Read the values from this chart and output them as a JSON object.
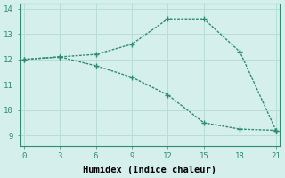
{
  "line1_x": [
    0,
    3,
    6,
    9,
    12,
    15,
    18,
    21
  ],
  "line1_y": [
    12.0,
    12.1,
    12.2,
    12.6,
    13.6,
    13.6,
    12.3,
    9.2
  ],
  "line2_x": [
    0,
    3,
    6,
    9,
    12,
    15,
    18,
    21
  ],
  "line2_y": [
    12.0,
    12.1,
    11.75,
    11.3,
    10.6,
    9.5,
    9.25,
    9.2
  ],
  "line_color": "#2e8b74",
  "bg_color": "#d5f0ec",
  "grid_color": "#b8ddd8",
  "xlabel": "Humidex (Indice chaleur)",
  "xticks": [
    0,
    3,
    6,
    9,
    12,
    15,
    18,
    21
  ],
  "yticks": [
    9,
    10,
    11,
    12,
    13,
    14
  ],
  "xlim": [
    -0.3,
    21.3
  ],
  "ylim": [
    8.6,
    14.2
  ],
  "marker": "+",
  "marker_size": 4,
  "line_width": 1.0,
  "xlabel_fontsize": 7.5,
  "tick_fontsize": 6.5,
  "font_family": "monospace"
}
